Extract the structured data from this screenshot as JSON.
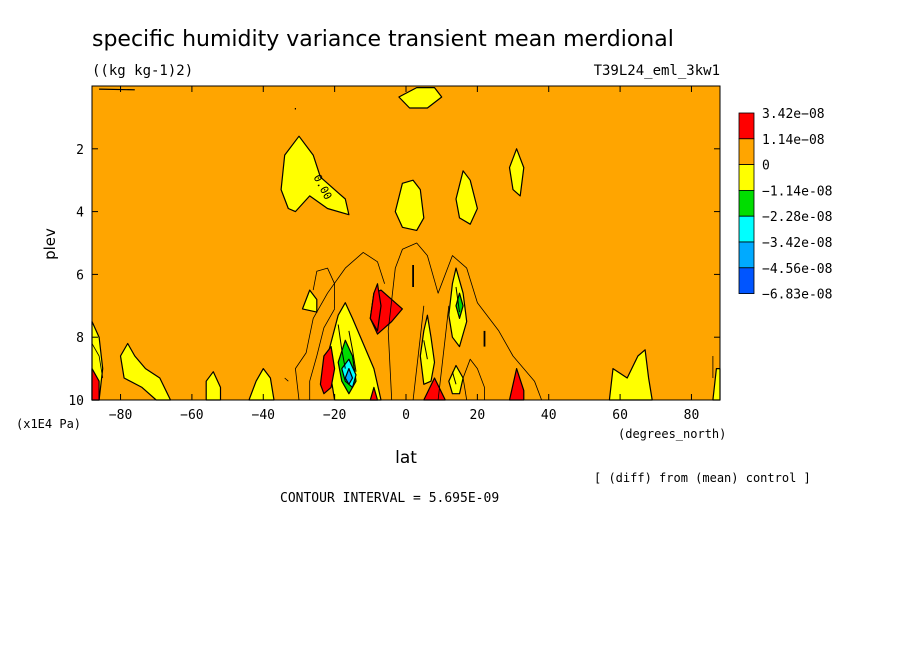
{
  "chart_data": {
    "type": "heatmap",
    "title": "specific humidity variance transient mean merdional",
    "units": "((kg kg-1)2)",
    "experiment": "T39L24_eml_3kw1",
    "xlabel": "lat",
    "xunits": "(degrees_north)",
    "ylabel": "plev",
    "yunits": "(x1E4 Pa)",
    "xlim": [
      -88,
      88
    ],
    "ylim": [
      0,
      10
    ],
    "y_inverted": true,
    "x_ticks": [
      -80,
      -60,
      -40,
      -20,
      0,
      20,
      40,
      60,
      80
    ],
    "y_ticks": [
      2,
      4,
      6,
      8,
      10
    ],
    "note": "[ (diff) from (mean) control ]",
    "contour_interval_text": "CONTOUR INTERVAL = 5.695E-09",
    "contour_label": "0.00",
    "background_color": "#ffa500",
    "legend": [
      {
        "label": "3.42e-08",
        "color": "#ff0000"
      },
      {
        "label": "1.14e-08",
        "color": "#ffa500"
      },
      {
        "label": "0",
        "color": "#ffff00"
      },
      {
        "label": "-1.14e-08",
        "color": "#00dd00"
      },
      {
        "label": "-2.28e-08",
        "color": "#00ffff"
      },
      {
        "label": "-3.42e-08",
        "color": "#00aaff"
      },
      {
        "label": "-4.56e-08",
        "color": "#0055ff"
      },
      {
        "label": "-6.83e-08",
        "color": ""
      }
    ],
    "regions": [
      {
        "kind": "yellow",
        "color": "#ffff00",
        "pts": [
          [
            -2,
            0.35
          ],
          [
            3,
            0.05
          ],
          [
            8,
            0.05
          ],
          [
            10,
            0.35
          ],
          [
            6,
            0.7
          ],
          [
            1,
            0.7
          ]
        ]
      },
      {
        "kind": "yellow",
        "color": "#ffff00",
        "pts": [
          [
            -35,
            3.3
          ],
          [
            -34,
            2.2
          ],
          [
            -30,
            1.6
          ],
          [
            -26,
            2.2
          ],
          [
            -24,
            2.9
          ],
          [
            -19,
            3.4
          ],
          [
            -17,
            3.6
          ],
          [
            -16,
            4.1
          ],
          [
            -22,
            3.9
          ],
          [
            -27,
            3.5
          ],
          [
            -31,
            4.0
          ],
          [
            -33,
            3.9
          ]
        ]
      },
      {
        "kind": "yellow",
        "color": "#ffff00",
        "pts": [
          [
            -3,
            4.0
          ],
          [
            -1,
            3.1
          ],
          [
            2,
            3.0
          ],
          [
            4,
            3.3
          ],
          [
            5,
            4.2
          ],
          [
            3,
            4.6
          ],
          [
            -1,
            4.5
          ]
        ]
      },
      {
        "kind": "yellow",
        "color": "#ffff00",
        "pts": [
          [
            14,
            3.6
          ],
          [
            16,
            2.7
          ],
          [
            18,
            3.0
          ],
          [
            20,
            3.9
          ],
          [
            18,
            4.4
          ],
          [
            15,
            4.2
          ]
        ]
      },
      {
        "kind": "yellow",
        "color": "#ffff00",
        "pts": [
          [
            29,
            2.6
          ],
          [
            31,
            2.0
          ],
          [
            33,
            2.6
          ],
          [
            32,
            3.5
          ],
          [
            30,
            3.3
          ]
        ]
      },
      {
        "kind": "yellow",
        "color": "#ffff00",
        "pts": [
          [
            -29,
            7.1
          ],
          [
            -27,
            6.5
          ],
          [
            -25,
            6.8
          ],
          [
            -25,
            7.2
          ]
        ]
      },
      {
        "kind": "yellow",
        "color": "#ffff00",
        "pts": [
          [
            -88,
            7.5
          ],
          [
            -86,
            8.0
          ],
          [
            -85,
            9.0
          ],
          [
            -86,
            10
          ],
          [
            -88,
            10
          ]
        ]
      },
      {
        "kind": "yellow",
        "color": "#ffff00",
        "pts": [
          [
            -80,
            8.6
          ],
          [
            -78,
            8.2
          ],
          [
            -76,
            8.6
          ],
          [
            -73,
            9.0
          ],
          [
            -69,
            9.3
          ],
          [
            -66,
            10
          ],
          [
            -70,
            10
          ],
          [
            -74,
            9.6
          ],
          [
            -79,
            9.3
          ]
        ]
      },
      {
        "kind": "yellow",
        "color": "#ffff00",
        "pts": [
          [
            -56,
            10
          ],
          [
            -56,
            9.4
          ],
          [
            -54,
            9.1
          ],
          [
            -52,
            9.6
          ],
          [
            -52,
            10
          ]
        ]
      },
      {
        "kind": "yellow",
        "color": "#ffff00",
        "pts": [
          [
            -44,
            10
          ],
          [
            -42,
            9.4
          ],
          [
            -40,
            9.0
          ],
          [
            -38,
            9.3
          ],
          [
            -37,
            10
          ]
        ]
      },
      {
        "kind": "yellow",
        "color": "#ffff00",
        "pts": [
          [
            57,
            10
          ],
          [
            58,
            9.0
          ],
          [
            62,
            9.3
          ],
          [
            65,
            8.6
          ],
          [
            67,
            8.4
          ],
          [
            68,
            9.3
          ],
          [
            69,
            10
          ]
        ]
      },
      {
        "kind": "yellow",
        "color": "#ffff00",
        "pts": [
          [
            86,
            10
          ],
          [
            87,
            9.0
          ],
          [
            88,
            9.0
          ],
          [
            88,
            10
          ]
        ]
      },
      {
        "kind": "yellow",
        "color": "#ffff00",
        "pts": [
          [
            -20,
            10
          ],
          [
            -22,
            8.6
          ],
          [
            -19,
            7.3
          ],
          [
            -17,
            6.9
          ],
          [
            -15,
            7.4
          ],
          [
            -12,
            8.2
          ],
          [
            -9,
            9.0
          ],
          [
            -7,
            10
          ]
        ]
      },
      {
        "kind": "yellow",
        "color": "#ffff00",
        "pts": [
          [
            4,
            8.6
          ],
          [
            5,
            7.8
          ],
          [
            6,
            7.3
          ],
          [
            7,
            8.0
          ],
          [
            8,
            8.8
          ],
          [
            7,
            9.4
          ],
          [
            5,
            9.5
          ]
        ]
      },
      {
        "kind": "yellow",
        "color": "#ffff00",
        "pts": [
          [
            12,
            7.3
          ],
          [
            13,
            6.3
          ],
          [
            14,
            5.8
          ],
          [
            16,
            6.6
          ],
          [
            17,
            7.5
          ],
          [
            15,
            8.3
          ],
          [
            13,
            8.0
          ]
        ]
      },
      {
        "kind": "yellow",
        "color": "#ffff00",
        "pts": [
          [
            12,
            9.4
          ],
          [
            14,
            8.9
          ],
          [
            16,
            9.3
          ],
          [
            15,
            9.8
          ],
          [
            13,
            9.8
          ]
        ]
      },
      {
        "kind": "green",
        "color": "#00dd00",
        "pts": [
          [
            -18,
            9.4
          ],
          [
            -19,
            8.8
          ],
          [
            -17,
            8.1
          ],
          [
            -15,
            8.6
          ],
          [
            -14,
            9.4
          ],
          [
            -16,
            9.8
          ]
        ]
      },
      {
        "kind": "green",
        "color": "#00dd00",
        "pts": [
          [
            14,
            7.0
          ],
          [
            15,
            6.6
          ],
          [
            16,
            7.0
          ],
          [
            15,
            7.4
          ]
        ]
      },
      {
        "kind": "cyan",
        "color": "#00ffff",
        "pts": [
          [
            -17,
            9.4
          ],
          [
            -18,
            9.0
          ],
          [
            -16,
            8.7
          ],
          [
            -14,
            9.2
          ],
          [
            -15,
            9.6
          ]
        ]
      },
      {
        "kind": "blue",
        "color": "#00aaff",
        "pts": [
          [
            -17,
            9.3
          ],
          [
            -16,
            9.0
          ],
          [
            -15,
            9.3
          ],
          [
            -16,
            9.5
          ]
        ]
      },
      {
        "kind": "red",
        "color": "#ff0000",
        "pts": [
          [
            -1,
            7.1
          ],
          [
            -7,
            6.5
          ],
          [
            -9,
            6.6
          ],
          [
            -10,
            7.4
          ],
          [
            -8,
            7.9
          ],
          [
            -4,
            7.5
          ]
        ]
      },
      {
        "kind": "red",
        "color": "#ff0000",
        "pts": [
          [
            -10,
            7.4
          ],
          [
            -9,
            6.6
          ],
          [
            -8,
            6.3
          ],
          [
            -7,
            7.0
          ],
          [
            -8,
            7.8
          ]
        ]
      },
      {
        "kind": "red",
        "color": "#ff0000",
        "pts": [
          [
            -24,
            9.5
          ],
          [
            -23,
            8.6
          ],
          [
            -21,
            8.3
          ],
          [
            -20,
            9.0
          ],
          [
            -21,
            9.6
          ],
          [
            -23,
            9.8
          ]
        ]
      },
      {
        "kind": "red",
        "color": "#ff0000",
        "pts": [
          [
            -88,
            9.0
          ],
          [
            -86,
            9.4
          ],
          [
            -86,
            10
          ],
          [
            -88,
            10
          ]
        ]
      },
      {
        "kind": "red",
        "color": "#ff0000",
        "pts": [
          [
            5,
            10
          ],
          [
            8,
            9.3
          ],
          [
            11,
            10
          ]
        ]
      },
      {
        "kind": "red",
        "color": "#ff0000",
        "pts": [
          [
            -10,
            10
          ],
          [
            -9,
            9.6
          ],
          [
            -8,
            10
          ]
        ]
      },
      {
        "kind": "red",
        "color": "#ff0000",
        "pts": [
          [
            29,
            10
          ],
          [
            31,
            9.0
          ],
          [
            33,
            9.7
          ],
          [
            33,
            10
          ]
        ]
      }
    ],
    "lines": [
      {
        "color": "#000000",
        "width": 1.2,
        "closed": false,
        "pts": [
          [
            -86,
            0.1
          ],
          [
            -76,
            0.12
          ]
        ]
      },
      {
        "color": "#000000",
        "width": 1.2,
        "closed": false,
        "pts": [
          [
            -31,
            0.7
          ],
          [
            -31,
            0.75
          ]
        ]
      },
      {
        "color": "#000000",
        "width": 0.8,
        "closed": false,
        "pts": [
          [
            -4,
            10
          ],
          [
            -5,
            7.8
          ],
          [
            -3,
            5.8
          ],
          [
            -1,
            5.2
          ],
          [
            3,
            5.0
          ],
          [
            6,
            5.4
          ],
          [
            9,
            6.6
          ],
          [
            13,
            5.4
          ],
          [
            17,
            5.8
          ],
          [
            20,
            6.9
          ],
          [
            26,
            7.8
          ],
          [
            30,
            8.6
          ],
          [
            36,
            9.4
          ],
          [
            38,
            10
          ]
        ]
      },
      {
        "color": "#000000",
        "width": 0.8,
        "closed": false,
        "pts": [
          [
            -30,
            10
          ],
          [
            -31,
            9.0
          ],
          [
            -28,
            8.5
          ],
          [
            -26,
            7.4
          ],
          [
            -22,
            6.6
          ],
          [
            -17,
            5.8
          ],
          [
            -12,
            5.3
          ],
          [
            -8,
            5.6
          ],
          [
            -6,
            6.3
          ]
        ]
      },
      {
        "color": "#000000",
        "width": 0.8,
        "closed": false,
        "pts": [
          [
            -20,
            7.1
          ],
          [
            -20,
            6.3
          ],
          [
            -22,
            5.8
          ],
          [
            -25,
            5.9
          ],
          [
            -26,
            6.5
          ]
        ]
      },
      {
        "color": "#000000",
        "width": 0.8,
        "closed": false,
        "pts": [
          [
            -27,
            10
          ],
          [
            -27,
            9.4
          ],
          [
            -25,
            8.6
          ],
          [
            -23,
            7.7
          ],
          [
            -20,
            7.1
          ]
        ]
      },
      {
        "color": "#000000",
        "width": 0.8,
        "closed": false,
        "pts": [
          [
            2,
            10
          ],
          [
            3,
            9.0
          ],
          [
            4,
            8.0
          ],
          [
            5,
            7.0
          ]
        ]
      },
      {
        "color": "#000000",
        "width": 0.8,
        "closed": false,
        "pts": [
          [
            9,
            10
          ],
          [
            10,
            9.0
          ],
          [
            11,
            8.0
          ],
          [
            12,
            7.0
          ]
        ]
      },
      {
        "color": "#000000",
        "width": 0.8,
        "closed": false,
        "pts": [
          [
            17,
            10
          ],
          [
            16,
            9.3
          ],
          [
            18,
            8.7
          ],
          [
            20,
            9.0
          ],
          [
            22,
            9.6
          ],
          [
            22,
            10
          ]
        ]
      },
      {
        "color": "#000000",
        "width": 0.8,
        "closed": false,
        "pts": [
          [
            -88,
            8.2
          ],
          [
            -86,
            8.6
          ],
          [
            -85,
            9.3
          ]
        ]
      },
      {
        "color": "#000000",
        "width": 0.8,
        "closed": false,
        "pts": [
          [
            86,
            8.6
          ],
          [
            86,
            9.3
          ]
        ]
      },
      {
        "color": "#000000",
        "width": 1.8,
        "closed": false,
        "pts": [
          [
            2,
            5.7
          ],
          [
            2,
            6.4
          ]
        ]
      },
      {
        "color": "#000000",
        "width": 1.8,
        "closed": false,
        "pts": [
          [
            22,
            7.8
          ],
          [
            22,
            8.3
          ]
        ]
      },
      {
        "color": "#000000",
        "width": 0.8,
        "closed": false,
        "pts": [
          [
            -34,
            9.3
          ],
          [
            -33,
            9.4
          ]
        ]
      },
      {
        "color": "#000000",
        "width": 1,
        "closed": false,
        "pts": [
          [
            -19,
            7.6
          ],
          [
            -18,
            8.4
          ],
          [
            -17,
            9.0
          ]
        ]
      },
      {
        "color": "#000000",
        "width": 1,
        "closed": false,
        "pts": [
          [
            -16,
            7.8
          ],
          [
            -15,
            8.4
          ],
          [
            -14,
            9.1
          ]
        ]
      },
      {
        "color": "#000000",
        "width": 1,
        "closed": false,
        "pts": [
          [
            5,
            8.1
          ],
          [
            6,
            8.7
          ]
        ]
      },
      {
        "color": "#000000",
        "width": 1,
        "closed": false,
        "pts": [
          [
            14,
            6.4
          ],
          [
            15,
            7.2
          ]
        ]
      },
      {
        "color": "#000000",
        "width": 1,
        "closed": false,
        "pts": [
          [
            13,
            9.1
          ],
          [
            14,
            9.5
          ]
        ]
      }
    ]
  }
}
